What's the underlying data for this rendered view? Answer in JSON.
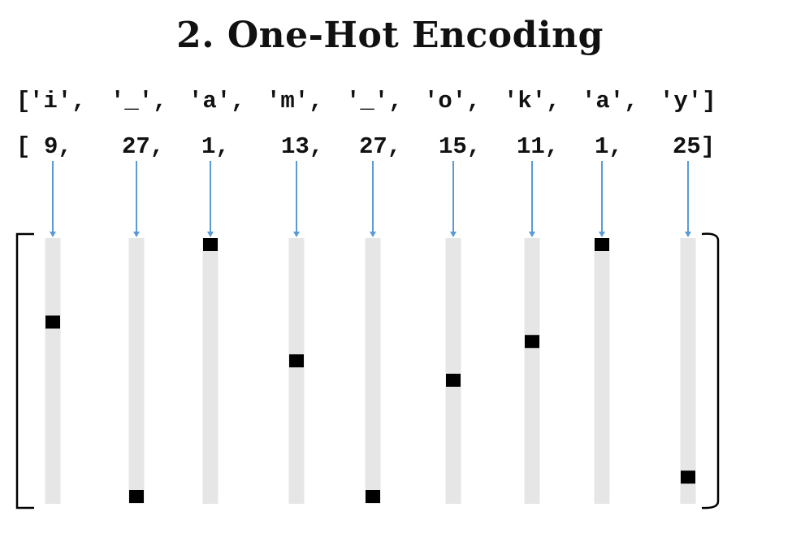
{
  "title": "2. One-Hot Encoding",
  "chars_row": {
    "open": "[",
    "items": [
      "'i',",
      "'_',",
      "'a',",
      "'m',",
      "'_',",
      "'o',",
      "'k',",
      "'a',",
      "'y']"
    ]
  },
  "index_row": {
    "open": "[",
    "items": [
      "9,",
      "27,",
      "1,",
      "13,",
      "27,",
      "15,",
      "11,",
      "1,",
      "25]"
    ]
  },
  "encoding": {
    "vocab_size": 27,
    "indices": [
      9,
      27,
      1,
      13,
      27,
      15,
      11,
      1,
      25
    ]
  },
  "colors": {
    "arrow": "#5b9bd5",
    "column": "#e6e6e6",
    "hot_cell": "#000000",
    "bracket": "#000000"
  }
}
